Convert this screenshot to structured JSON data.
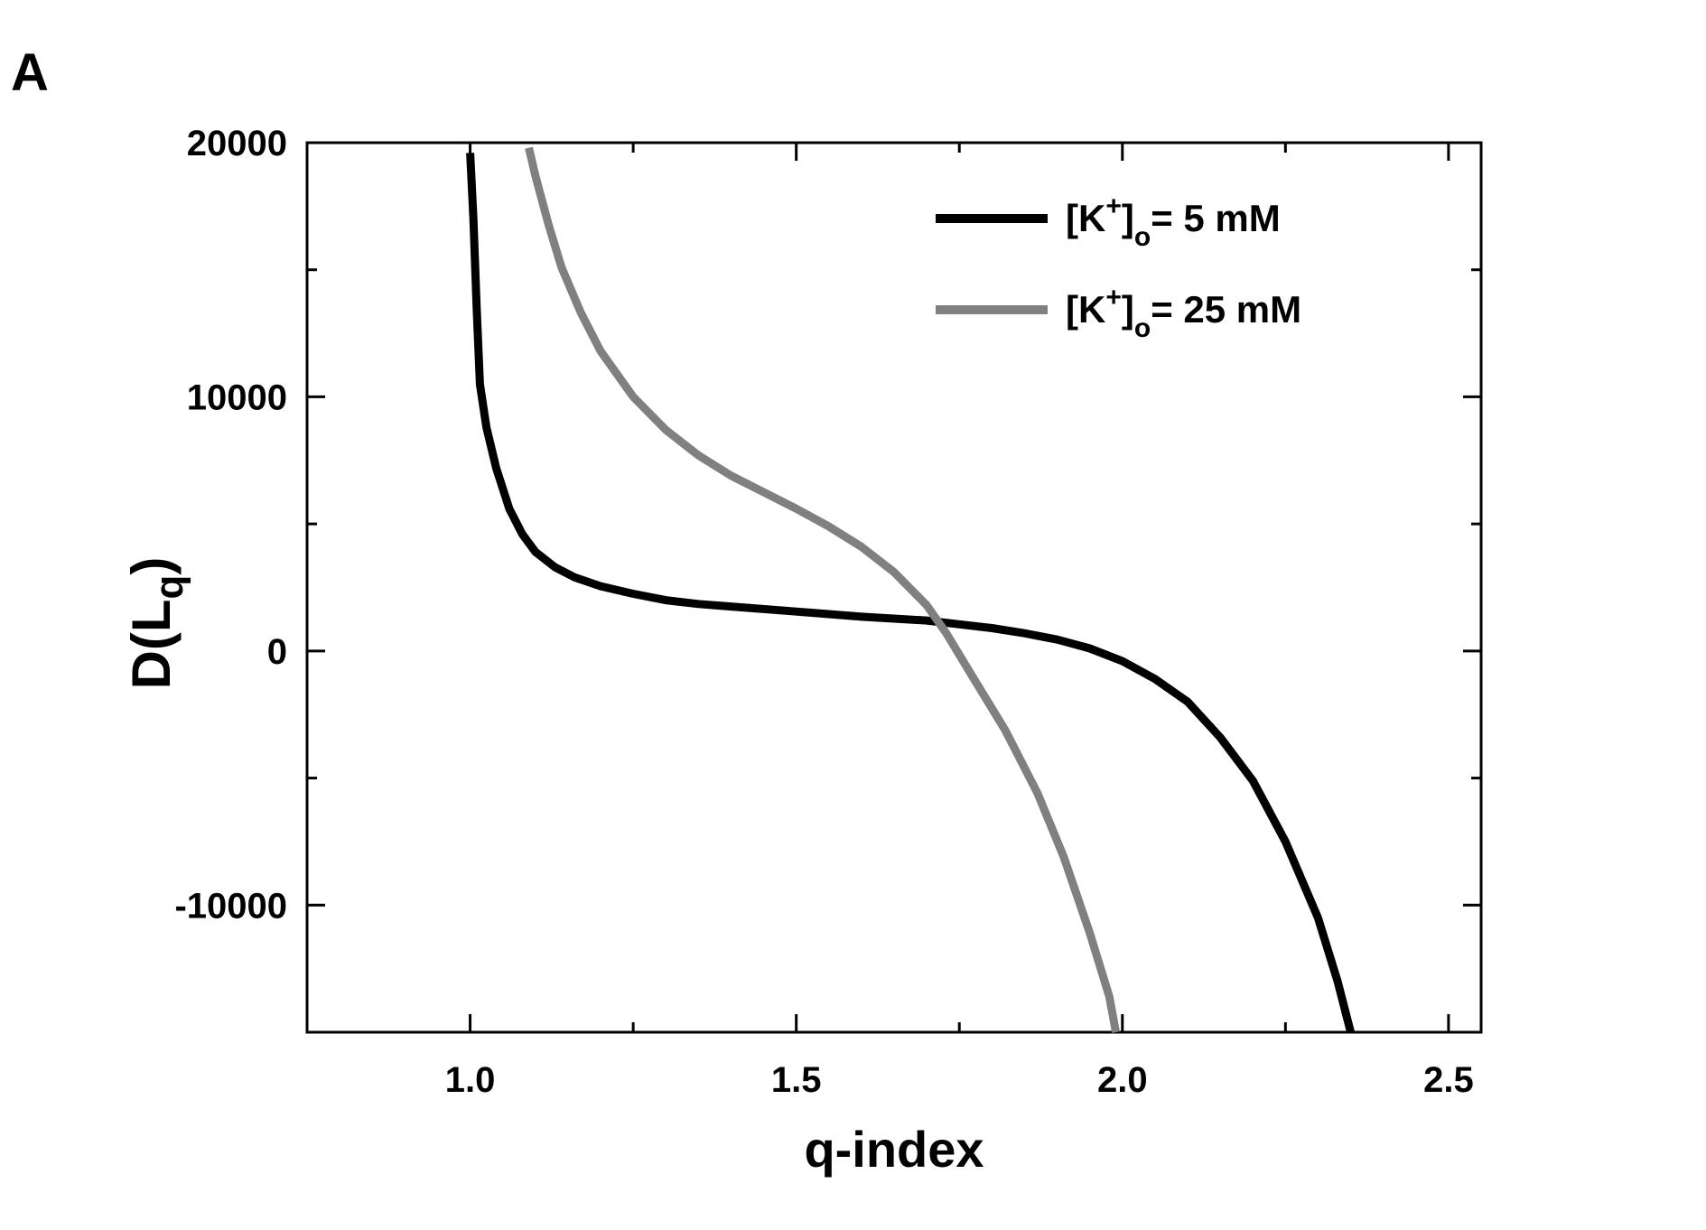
{
  "panel_label": "A",
  "chart_data": {
    "type": "line",
    "xlabel": "q-index",
    "ylabel": {
      "main": "D(L",
      "sub": "q",
      "close": ")"
    },
    "xlim": [
      0.75,
      2.55
    ],
    "ylim": [
      -15000,
      20000
    ],
    "x_ticks": [
      "1.0",
      "1.5",
      "2.0",
      "2.5"
    ],
    "y_ticks": [
      "20000",
      "10000",
      "0",
      "-10000"
    ],
    "legend_placement": "top-right",
    "series": [
      {
        "legend": {
          "pre": "[K",
          "sup": "+",
          "mid": "]",
          "sub": "o",
          "post": "= 5 mM"
        },
        "color": "#000000",
        "points": [
          [
            1.0,
            19600
          ],
          [
            1.005,
            17000
          ],
          [
            1.01,
            13500
          ],
          [
            1.015,
            10500
          ],
          [
            1.025,
            8800
          ],
          [
            1.04,
            7200
          ],
          [
            1.06,
            5600
          ],
          [
            1.08,
            4600
          ],
          [
            1.1,
            3900
          ],
          [
            1.13,
            3300
          ],
          [
            1.16,
            2900
          ],
          [
            1.2,
            2550
          ],
          [
            1.25,
            2250
          ],
          [
            1.3,
            2000
          ],
          [
            1.35,
            1850
          ],
          [
            1.4,
            1750
          ],
          [
            1.5,
            1550
          ],
          [
            1.6,
            1350
          ],
          [
            1.7,
            1200
          ],
          [
            1.75,
            1050
          ],
          [
            1.8,
            900
          ],
          [
            1.85,
            700
          ],
          [
            1.9,
            450
          ],
          [
            1.95,
            100
          ],
          [
            2.0,
            -400
          ],
          [
            2.05,
            -1100
          ],
          [
            2.1,
            -2000
          ],
          [
            2.15,
            -3400
          ],
          [
            2.2,
            -5100
          ],
          [
            2.25,
            -7500
          ],
          [
            2.3,
            -10500
          ],
          [
            2.33,
            -13000
          ],
          [
            2.35,
            -15000
          ]
        ]
      },
      {
        "legend": {
          "pre": "[K",
          "sup": "+",
          "mid": "]",
          "sub": "o",
          "post": "= 25 mM"
        },
        "color": "#808080",
        "points": [
          [
            1.09,
            19800
          ],
          [
            1.1,
            18700
          ],
          [
            1.12,
            16800
          ],
          [
            1.14,
            15100
          ],
          [
            1.17,
            13300
          ],
          [
            1.2,
            11800
          ],
          [
            1.25,
            10000
          ],
          [
            1.3,
            8700
          ],
          [
            1.35,
            7700
          ],
          [
            1.4,
            6900
          ],
          [
            1.45,
            6250
          ],
          [
            1.5,
            5600
          ],
          [
            1.55,
            4900
          ],
          [
            1.6,
            4100
          ],
          [
            1.65,
            3100
          ],
          [
            1.7,
            1800
          ],
          [
            1.73,
            700
          ],
          [
            1.77,
            -1000
          ],
          [
            1.82,
            -3100
          ],
          [
            1.87,
            -5600
          ],
          [
            1.91,
            -8100
          ],
          [
            1.95,
            -11100
          ],
          [
            1.98,
            -13600
          ],
          [
            1.99,
            -15000
          ]
        ]
      }
    ]
  }
}
